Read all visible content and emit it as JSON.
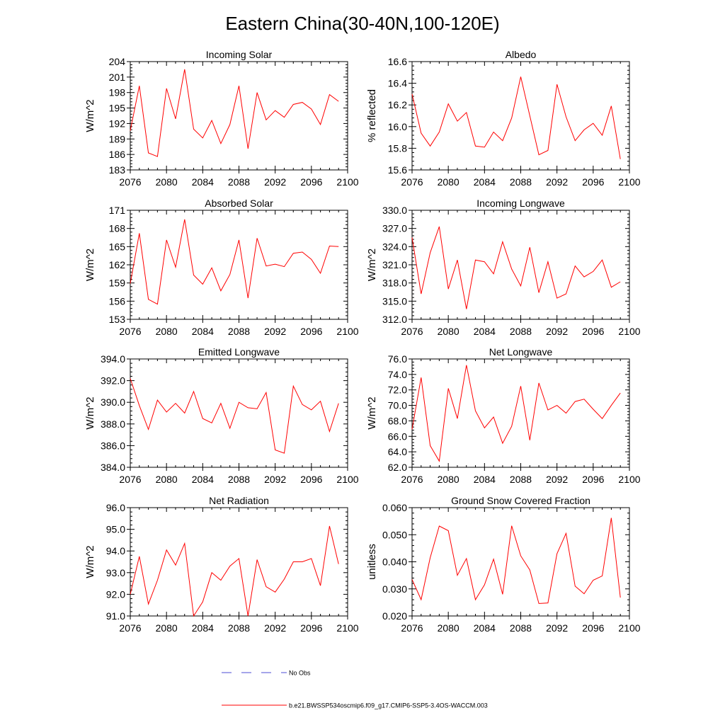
{
  "figure": {
    "title": "Eastern China(30-40N,100-120E)"
  },
  "legend": {
    "no_obs_label": "No Obs",
    "model_label": "b.e21.BWSSP534oscmip6.f09_g17.CMIP6-SSP5-3.4OS-WACCM.003",
    "no_obs_color": "#4d4dd6",
    "model_color": "#ff0000"
  },
  "chart_data": [
    {
      "type": "line",
      "title": "Incoming Solar",
      "xlabel": "",
      "ylabel": "W/m^2",
      "xlim": [
        2076,
        2100
      ],
      "ylim": [
        183,
        204
      ],
      "xticks": [
        2076,
        2080,
        2084,
        2088,
        2092,
        2096,
        2100
      ],
      "yticks": [
        "183",
        "186",
        "189",
        "192",
        "195",
        "198",
        "201",
        "204"
      ],
      "series": [
        {
          "name": "b.e21.BWSSP534oscmip6.f09_g17.CMIP6-SSP5-3.4OS-WACCM.003",
          "x": [
            2076,
            2077,
            2078,
            2079,
            2080,
            2081,
            2082,
            2083,
            2084,
            2085,
            2086,
            2087,
            2088,
            2089,
            2090,
            2091,
            2092,
            2093,
            2094,
            2095,
            2096,
            2097,
            2098,
            2099
          ],
          "values": [
            190.6,
            199.3,
            186.3,
            185.6,
            198.8,
            192.9,
            202.5,
            190.9,
            189.2,
            192.6,
            188.1,
            191.8,
            199.3,
            187.1,
            198.0,
            192.7,
            194.5,
            193.2,
            195.7,
            196.1,
            194.8,
            191.8,
            197.6,
            196.3
          ]
        }
      ]
    },
    {
      "type": "line",
      "title": "Albedo",
      "xlabel": "",
      "ylabel": "% reflected",
      "xlim": [
        2076,
        2100
      ],
      "ylim": [
        15.6,
        16.6
      ],
      "xticks": [
        2076,
        2080,
        2084,
        2088,
        2092,
        2096,
        2100
      ],
      "yticks": [
        "15.6",
        "15.8",
        "16.0",
        "16.2",
        "16.4",
        "16.6"
      ],
      "series": [
        {
          "name": "b.e21.BWSSP534oscmip6.f09_g17.CMIP6-SSP5-3.4OS-WACCM.003",
          "x": [
            2076,
            2077,
            2078,
            2079,
            2080,
            2081,
            2082,
            2083,
            2084,
            2085,
            2086,
            2087,
            2088,
            2089,
            2090,
            2091,
            2092,
            2093,
            2094,
            2095,
            2096,
            2097,
            2098,
            2099
          ],
          "values": [
            16.3,
            15.94,
            15.82,
            15.95,
            16.21,
            16.05,
            16.13,
            15.82,
            15.81,
            15.95,
            15.87,
            16.08,
            16.46,
            16.1,
            15.74,
            15.78,
            16.39,
            16.09,
            15.87,
            15.97,
            16.03,
            15.92,
            16.19,
            15.7
          ]
        }
      ]
    },
    {
      "type": "line",
      "title": "Absorbed Solar",
      "xlabel": "",
      "ylabel": "W/m^2",
      "xlim": [
        2076,
        2100
      ],
      "ylim": [
        153,
        171
      ],
      "xticks": [
        2076,
        2080,
        2084,
        2088,
        2092,
        2096,
        2100
      ],
      "yticks": [
        "153",
        "156",
        "159",
        "162",
        "165",
        "168",
        "171"
      ],
      "series": [
        {
          "name": "b.e21.BWSSP534oscmip6.f09_g17.CMIP6-SSP5-3.4OS-WACCM.003",
          "x": [
            2076,
            2077,
            2078,
            2079,
            2080,
            2081,
            2082,
            2083,
            2084,
            2085,
            2086,
            2087,
            2088,
            2089,
            2090,
            2091,
            2092,
            2093,
            2094,
            2095,
            2096,
            2097,
            2098,
            2099
          ],
          "values": [
            158.9,
            167.2,
            156.3,
            155.5,
            166.1,
            161.6,
            169.5,
            160.3,
            158.8,
            161.5,
            157.7,
            160.4,
            166.1,
            156.5,
            166.4,
            161.8,
            162.1,
            161.7,
            163.9,
            164.1,
            162.9,
            160.6,
            165.1,
            165.0
          ]
        }
      ]
    },
    {
      "type": "line",
      "title": "Incoming Longwave",
      "xlabel": "",
      "ylabel": "W/m^2",
      "xlim": [
        2076,
        2100
      ],
      "ylim": [
        312.0,
        330.0
      ],
      "xticks": [
        2076,
        2080,
        2084,
        2088,
        2092,
        2096,
        2100
      ],
      "yticks": [
        "312.0",
        "315.0",
        "318.0",
        "321.0",
        "324.0",
        "327.0",
        "330.0"
      ],
      "series": [
        {
          "name": "b.e21.BWSSP534oscmip6.f09_g17.CMIP6-SSP5-3.4OS-WACCM.003",
          "x": [
            2076,
            2077,
            2078,
            2079,
            2080,
            2081,
            2082,
            2083,
            2084,
            2085,
            2086,
            2087,
            2088,
            2089,
            2090,
            2091,
            2092,
            2093,
            2094,
            2095,
            2096,
            2097,
            2098,
            2099
          ],
          "values": [
            325.5,
            316.2,
            323.0,
            327.3,
            317.0,
            321.8,
            313.7,
            321.8,
            321.5,
            319.5,
            324.8,
            320.3,
            317.5,
            323.9,
            316.4,
            321.5,
            315.5,
            316.2,
            320.8,
            319.0,
            319.9,
            321.8,
            317.3,
            318.2
          ]
        }
      ]
    },
    {
      "type": "line",
      "title": "Emitted Longwave",
      "xlabel": "",
      "ylabel": "W/m^2",
      "xlim": [
        2076,
        2100
      ],
      "ylim": [
        384.0,
        394.0
      ],
      "xticks": [
        2076,
        2080,
        2084,
        2088,
        2092,
        2096,
        2100
      ],
      "yticks": [
        "384.0",
        "386.0",
        "388.0",
        "390.0",
        "392.0",
        "394.0"
      ],
      "series": [
        {
          "name": "b.e21.BWSSP534oscmip6.f09_g17.CMIP6-SSP5-3.4OS-WACCM.003",
          "x": [
            2076,
            2077,
            2078,
            2079,
            2080,
            2081,
            2082,
            2083,
            2084,
            2085,
            2086,
            2087,
            2088,
            2089,
            2090,
            2091,
            2092,
            2093,
            2094,
            2095,
            2096,
            2097,
            2098,
            2099
          ],
          "values": [
            392.2,
            389.7,
            387.5,
            390.2,
            389.1,
            389.9,
            389.0,
            391.0,
            388.5,
            388.1,
            389.9,
            387.6,
            390.0,
            389.5,
            389.4,
            390.9,
            385.6,
            385.3,
            391.5,
            389.8,
            389.3,
            390.1,
            387.3,
            389.9
          ]
        }
      ]
    },
    {
      "type": "line",
      "title": "Net Longwave",
      "xlabel": "",
      "ylabel": "W/m^2",
      "xlim": [
        2076,
        2100
      ],
      "ylim": [
        62.0,
        76.0
      ],
      "xticks": [
        2076,
        2080,
        2084,
        2088,
        2092,
        2096,
        2100
      ],
      "yticks": [
        "62.0",
        "64.0",
        "66.0",
        "68.0",
        "70.0",
        "72.0",
        "74.0",
        "76.0"
      ],
      "series": [
        {
          "name": "b.e21.BWSSP534oscmip6.f09_g17.CMIP6-SSP5-3.4OS-WACCM.003",
          "x": [
            2076,
            2077,
            2078,
            2079,
            2080,
            2081,
            2082,
            2083,
            2084,
            2085,
            2086,
            2087,
            2088,
            2089,
            2090,
            2091,
            2092,
            2093,
            2094,
            2095,
            2096,
            2097,
            2098,
            2099
          ],
          "values": [
            66.9,
            73.6,
            64.8,
            62.8,
            72.2,
            68.3,
            75.2,
            69.3,
            67.1,
            68.5,
            65.1,
            67.3,
            72.5,
            65.5,
            72.9,
            69.4,
            70.0,
            69.0,
            70.5,
            70.8,
            69.5,
            68.3,
            70.0,
            71.6
          ]
        }
      ]
    },
    {
      "type": "line",
      "title": "Net Radiation",
      "xlabel": "",
      "ylabel": "W/m^2",
      "xlim": [
        2076,
        2100
      ],
      "ylim": [
        91.0,
        96.0
      ],
      "xticks": [
        2076,
        2080,
        2084,
        2088,
        2092,
        2096,
        2100
      ],
      "yticks": [
        "91.0",
        "92.0",
        "93.0",
        "94.0",
        "95.0",
        "96.0"
      ],
      "series": [
        {
          "name": "b.e21.BWSSP534oscmip6.f09_g17.CMIP6-SSP5-3.4OS-WACCM.003",
          "x": [
            2076,
            2077,
            2078,
            2079,
            2080,
            2081,
            2082,
            2083,
            2084,
            2085,
            2086,
            2087,
            2088,
            2089,
            2090,
            2091,
            2092,
            2093,
            2094,
            2095,
            2096,
            2097,
            2098,
            2099
          ],
          "values": [
            92.0,
            93.75,
            91.55,
            92.65,
            94.05,
            93.35,
            94.35,
            91.0,
            91.65,
            93.0,
            92.65,
            93.3,
            93.65,
            90.95,
            93.6,
            92.35,
            92.1,
            92.7,
            93.5,
            93.5,
            93.65,
            92.4,
            95.15,
            93.4
          ]
        }
      ]
    },
    {
      "type": "line",
      "title": "Ground Snow Covered Fraction",
      "xlabel": "",
      "ylabel": "unitless",
      "xlim": [
        2076,
        2100
      ],
      "ylim": [
        0.02,
        0.06
      ],
      "xticks": [
        2076,
        2080,
        2084,
        2088,
        2092,
        2096,
        2100
      ],
      "yticks": [
        "0.020",
        "0.030",
        "0.040",
        "0.050",
        "0.060"
      ],
      "series": [
        {
          "name": "b.e21.BWSSP534oscmip6.f09_g17.CMIP6-SSP5-3.4OS-WACCM.003",
          "x": [
            2076,
            2077,
            2078,
            2079,
            2080,
            2081,
            2082,
            2083,
            2084,
            2085,
            2086,
            2087,
            2088,
            2089,
            2090,
            2091,
            2092,
            2093,
            2094,
            2095,
            2096,
            2097,
            2098,
            2099
          ],
          "values": [
            0.0335,
            0.026,
            0.0415,
            0.0532,
            0.0515,
            0.035,
            0.0412,
            0.026,
            0.0315,
            0.041,
            0.028,
            0.0533,
            0.0422,
            0.037,
            0.0246,
            0.0248,
            0.043,
            0.0505,
            0.031,
            0.0282,
            0.0332,
            0.0348,
            0.0562,
            0.0268
          ]
        }
      ]
    }
  ]
}
